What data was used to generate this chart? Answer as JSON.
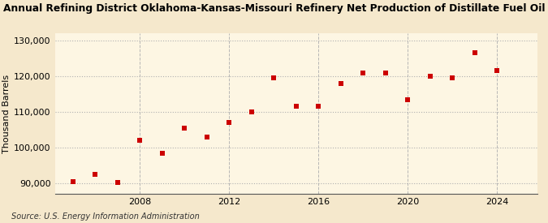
{
  "title": "Annual Refining District Oklahoma-Kansas-Missouri Refinery Net Production of Distillate Fuel Oil",
  "ylabel": "Thousand Barrels",
  "source": "Source: U.S. Energy Information Administration",
  "background_color": "#f5e8cc",
  "plot_background_color": "#fdf6e3",
  "marker_color": "#cc0000",
  "grid_color": "#b0b0b0",
  "years": [
    2005,
    2006,
    2007,
    2008,
    2009,
    2010,
    2011,
    2012,
    2013,
    2014,
    2015,
    2016,
    2017,
    2018,
    2019,
    2020,
    2021,
    2022,
    2023,
    2024
  ],
  "values": [
    90500,
    92500,
    90200,
    102000,
    98500,
    105500,
    103000,
    107000,
    110000,
    119500,
    111500,
    111500,
    118000,
    121000,
    121000,
    113500,
    120000,
    119500,
    126500,
    121500
  ],
  "ylim": [
    87000,
    132000
  ],
  "yticks": [
    90000,
    100000,
    110000,
    120000,
    130000
  ],
  "xticks": [
    2008,
    2012,
    2016,
    2020,
    2024
  ],
  "xlim": [
    2004.2,
    2025.8
  ],
  "title_fontsize": 8.8,
  "axis_fontsize": 8.0,
  "source_fontsize": 7.0
}
